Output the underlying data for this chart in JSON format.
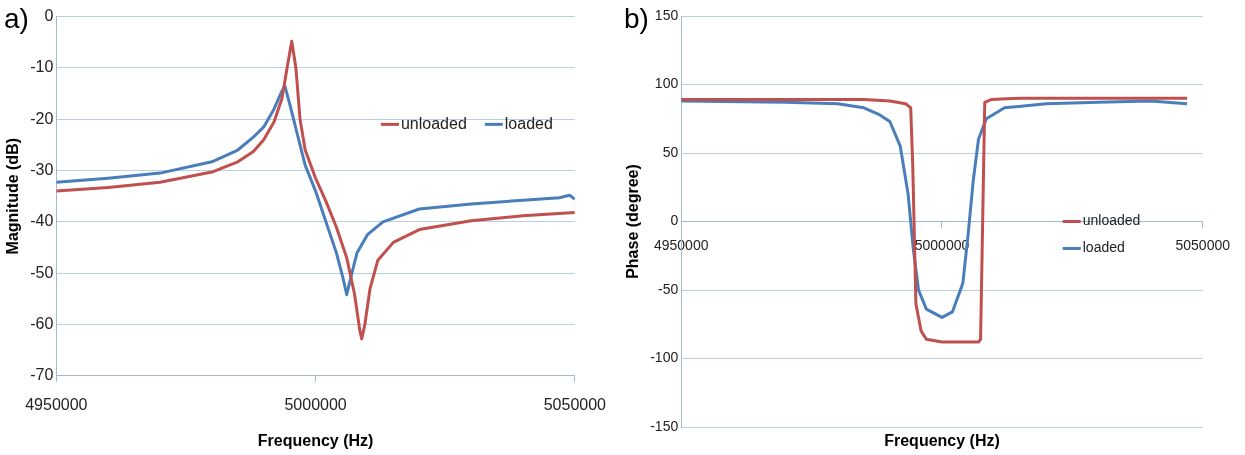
{
  "chart_data": [
    {
      "type": "line",
      "title": "a)",
      "xlabel": "Frequency (Hz)",
      "ylabel": "Magnitude (dB)",
      "xlim": [
        4950000,
        5050000
      ],
      "xticks": [
        4950000,
        5000000,
        5050000
      ],
      "ylim": [
        -70,
        0
      ],
      "yticks": [
        -70,
        -60,
        -50,
        -40,
        -30,
        -20,
        -10,
        0
      ],
      "grid": "y",
      "legend": "top right",
      "series": [
        {
          "name": "unloaded",
          "color": "#c0504d",
          "x": [
            4950000,
            4960000,
            4970000,
            4980000,
            4985000,
            4988000,
            4990000,
            4992000,
            4993500,
            4994500,
            4995400,
            4996200,
            4997000,
            4998000,
            5000000,
            5002000,
            5004000,
            5006000,
            5007500,
            5008500,
            5008900,
            5009500,
            5010500,
            5012000,
            5015000,
            5020000,
            5030000,
            5040000,
            5050000
          ],
          "values": [
            -34,
            -33.3,
            -32.3,
            -30.3,
            -28.3,
            -26.3,
            -24,
            -20.5,
            -16,
            -10,
            -4.8,
            -10,
            -20,
            -26,
            -31.5,
            -36,
            -41,
            -47,
            -54,
            -61,
            -62.8,
            -60,
            -53,
            -47.5,
            -44,
            -41.5,
            -39.8,
            -38.8,
            -38.2
          ]
        },
        {
          "name": "loaded",
          "color": "#4a7ebb",
          "x": [
            4950000,
            4960000,
            4970000,
            4980000,
            4985000,
            4988000,
            4990000,
            4992000,
            4993500,
            4994100,
            4995000,
            4996500,
            4998000,
            5000000,
            5002000,
            5004000,
            5005300,
            5006000,
            5007000,
            5008000,
            5010000,
            5013000,
            5020000,
            5030000,
            5040000,
            5047000,
            5049000,
            5050000
          ],
          "values": [
            -32.3,
            -31.5,
            -30.5,
            -28.3,
            -26,
            -23.5,
            -21.5,
            -18,
            -14.5,
            -13.6,
            -17,
            -23,
            -29,
            -34,
            -40,
            -46,
            -51,
            -54.2,
            -50,
            -46,
            -42.5,
            -40,
            -37.5,
            -36.5,
            -35.8,
            -35.3,
            -34.8,
            -35.6
          ]
        }
      ]
    },
    {
      "type": "line",
      "title": "b)",
      "xlabel": "Frequency (Hz)",
      "ylabel": "Phase (degree)",
      "xlim": [
        4950000,
        5050000
      ],
      "xticks": [
        4950000,
        5000000,
        5050000
      ],
      "ylim": [
        -150,
        150
      ],
      "yticks": [
        -150,
        -100,
        -50,
        0,
        50,
        100,
        150
      ],
      "grid": "y",
      "legend": "right",
      "series": [
        {
          "name": "unloaded",
          "color": "#c0504d",
          "x": [
            4950000,
            4970000,
            4985000,
            4990000,
            4993000,
            4994000,
            4994400,
            4995000,
            4996000,
            4997000,
            5000000,
            5005000,
            5007000,
            5007400,
            5007800,
            5008200,
            5009400,
            5015000,
            5030000,
            5047000
          ],
          "values": [
            89,
            89,
            89,
            88,
            86,
            83,
            40,
            -60,
            -80,
            -86,
            -88,
            -88,
            -88,
            -86,
            0,
            87,
            89,
            90,
            90,
            90
          ]
        },
        {
          "name": "loaded",
          "color": "#4a7ebb",
          "x": [
            4950000,
            4970000,
            4980000,
            4985000,
            4988000,
            4990000,
            4992000,
            4993500,
            4994500,
            4995500,
            4997000,
            5000000,
            5002000,
            5004000,
            5005000,
            5006000,
            5007000,
            5008500,
            5012000,
            5020000,
            5030000,
            5040000,
            5047000
          ],
          "values": [
            88,
            87,
            86,
            83,
            78,
            73,
            55,
            20,
            -20,
            -50,
            -64,
            -70,
            -66,
            -45,
            -10,
            30,
            60,
            75,
            83,
            86,
            87,
            88,
            86
          ]
        }
      ]
    }
  ]
}
